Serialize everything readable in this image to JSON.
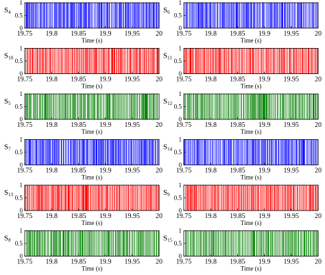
{
  "xlabel": "Time (s)",
  "x_ticks": [
    "19.75",
    "19.8",
    "19.85",
    "19.9",
    "19.95",
    "20"
  ],
  "y_ticks": [
    "0",
    "0.5",
    "1"
  ],
  "chart_data": [
    {
      "type": "line",
      "ylabel": "S4",
      "sub": "4",
      "color": "#0000ff",
      "xlim": [
        19.75,
        20
      ],
      "ylim": [
        0,
        1
      ],
      "density": 0.55,
      "seed": 3
    },
    {
      "type": "line",
      "ylabel": "S6",
      "sub": "6",
      "color": "#0000ff",
      "xlim": [
        19.75,
        20
      ],
      "ylim": [
        0,
        1
      ],
      "density": 0.55,
      "seed": 7
    },
    {
      "type": "line",
      "ylabel": "S10",
      "sub": "10",
      "color": "#ff0000",
      "xlim": [
        19.75,
        20
      ],
      "ylim": [
        0,
        1
      ],
      "density": 0.6,
      "seed": 11
    },
    {
      "type": "line",
      "ylabel": "S11",
      "sub": "11",
      "color": "#ff0000",
      "xlim": [
        19.75,
        20
      ],
      "ylim": [
        0,
        1
      ],
      "density": 0.6,
      "seed": 13
    },
    {
      "type": "line",
      "ylabel": "S5",
      "sub": "5",
      "color": "#008000",
      "xlim": [
        19.75,
        20
      ],
      "ylim": [
        0,
        1
      ],
      "density": 0.5,
      "seed": 17
    },
    {
      "type": "line",
      "ylabel": "S12",
      "sub": "12",
      "color": "#008000",
      "xlim": [
        19.75,
        20
      ],
      "ylim": [
        0,
        1
      ],
      "density": 0.55,
      "seed": 19
    },
    {
      "type": "line",
      "ylabel": "S7",
      "sub": "7",
      "color": "#0000ff",
      "xlim": [
        19.75,
        20
      ],
      "ylim": [
        0,
        1
      ],
      "density": 0.55,
      "seed": 23
    },
    {
      "type": "line",
      "ylabel": "S14",
      "sub": "14",
      "color": "#0000ff",
      "xlim": [
        19.75,
        20
      ],
      "ylim": [
        0,
        1
      ],
      "density": 0.55,
      "seed": 29
    },
    {
      "type": "line",
      "ylabel": "S13",
      "sub": "13",
      "color": "#ff0000",
      "xlim": [
        19.75,
        20
      ],
      "ylim": [
        0,
        1
      ],
      "density": 0.6,
      "seed": 31
    },
    {
      "type": "line",
      "ylabel": "S9",
      "sub": "9",
      "color": "#ff0000",
      "xlim": [
        19.75,
        20
      ],
      "ylim": [
        0,
        1
      ],
      "density": 0.6,
      "seed": 37
    },
    {
      "type": "line",
      "ylabel": "S8",
      "sub": "8",
      "color": "#008000",
      "xlim": [
        19.75,
        20
      ],
      "ylim": [
        0,
        1
      ],
      "density": 0.5,
      "seed": 41
    },
    {
      "type": "line",
      "ylabel": "S15",
      "sub": "15",
      "color": "#008000",
      "xlim": [
        19.75,
        20
      ],
      "ylim": [
        0,
        1
      ],
      "density": 0.5,
      "seed": 43
    }
  ]
}
